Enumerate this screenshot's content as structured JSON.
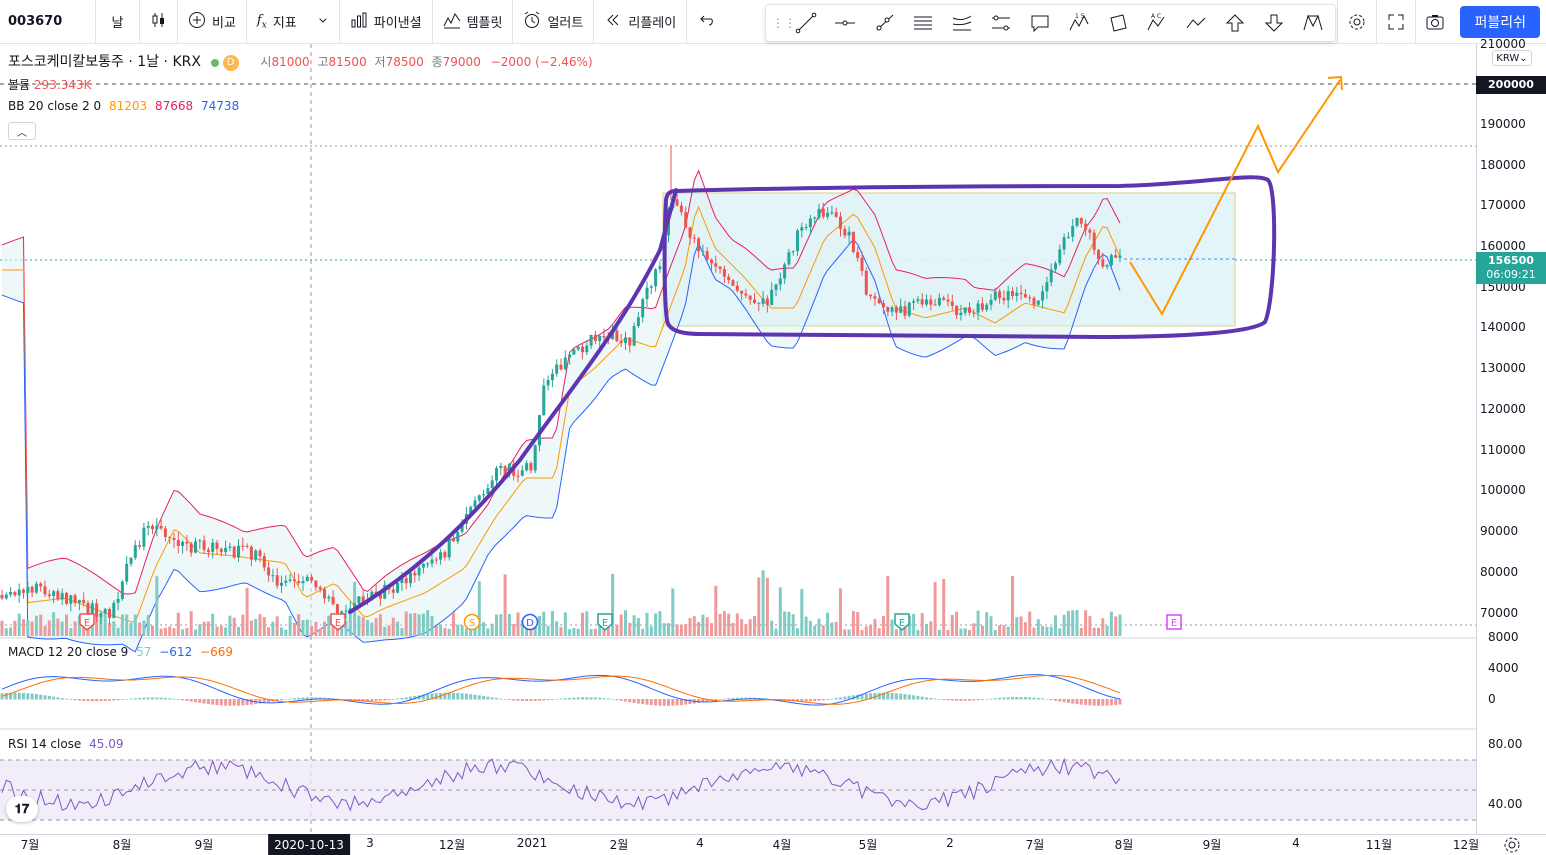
{
  "toolbar": {
    "symbol": "003670",
    "interval": "날",
    "compare": "비교",
    "indicators": "지표",
    "pine": "파이낸셜",
    "templates": "템플릿",
    "alert": "얼러트",
    "replay": "리플레이",
    "publish": "퍼블리쉬",
    "star_label": "1 5",
    "abcd_label": "A C"
  },
  "legend": {
    "name": "포스코케미칼보통주",
    "interval": "1날",
    "exchange": "KRX",
    "badge": "D",
    "open_k": "시",
    "open_v": "81000",
    "high_k": "고",
    "high_v": "81500",
    "low_k": "저",
    "low_v": "78500",
    "close_k": "종",
    "close_v": "79000",
    "change": "−2000 (−2.46%)",
    "volume_k": "볼륨",
    "volume_v": "293.343K",
    "bb_k": "BB 20 close 2 0",
    "bb_mid": "81203",
    "bb_up": "87668",
    "bb_lo": "74738",
    "macd_k": "MACD 12 20 close 9",
    "macd_h": "57",
    "macd_m": "−612",
    "macd_s": "−669",
    "rsi_k": "RSI 14 close",
    "rsi_v": "45.09"
  },
  "price_axis": {
    "currency": "KRW",
    "ticks": [
      "210000",
      "200000",
      "190000",
      "180000",
      "170000",
      "160000",
      "150000",
      "140000",
      "130000",
      "120000",
      "110000",
      "100000",
      "90000",
      "80000",
      "70000"
    ],
    "current_price": "156500",
    "countdown": "06:09:21",
    "target_label": "200000",
    "macd_ticks": [
      "8000",
      "4000",
      "0"
    ],
    "rsi_ticks": [
      "80.00",
      "40.00"
    ]
  },
  "time_axis": {
    "labels": [
      "7월",
      "8월",
      "9월",
      "2020-10-13",
      "3",
      "12월",
      "2021",
      "2월",
      "4",
      "4월",
      "5월",
      "2",
      "7월",
      "8월",
      "9월",
      "4",
      "11월",
      "12월"
    ]
  },
  "events": [
    "E",
    "E",
    "S",
    "D",
    "E",
    "E",
    "E"
  ],
  "colors": {
    "up": "#26a69a",
    "down": "#ef5350",
    "bb_upper": "#e91e63",
    "bb_mid": "#ff9800",
    "bb_lower": "#2962ff",
    "drawing_purple": "#5e35b1",
    "projection": "#ff9800",
    "rsi_line": "#7e57c2",
    "accent": "#2962ff"
  },
  "icons": [
    "candles-icon",
    "compare-plus-icon",
    "fx-icon",
    "chevron-down-icon",
    "pine-bars-icon",
    "templates-icon",
    "alarm-clock-icon",
    "replay-icon",
    "undo-icon",
    "trend-line-icon",
    "horizontal-line-icon",
    "ray-icon",
    "parallel-channel-icon",
    "fib-icon",
    "range-icon",
    "callout-icon",
    "elliott-icon",
    "rotated-rect-icon",
    "abcd-icon",
    "path-icon",
    "arrow-up-icon",
    "arrow-down-icon",
    "pattern-icon",
    "gear-icon",
    "fullscreen-icon",
    "camera-icon"
  ]
}
